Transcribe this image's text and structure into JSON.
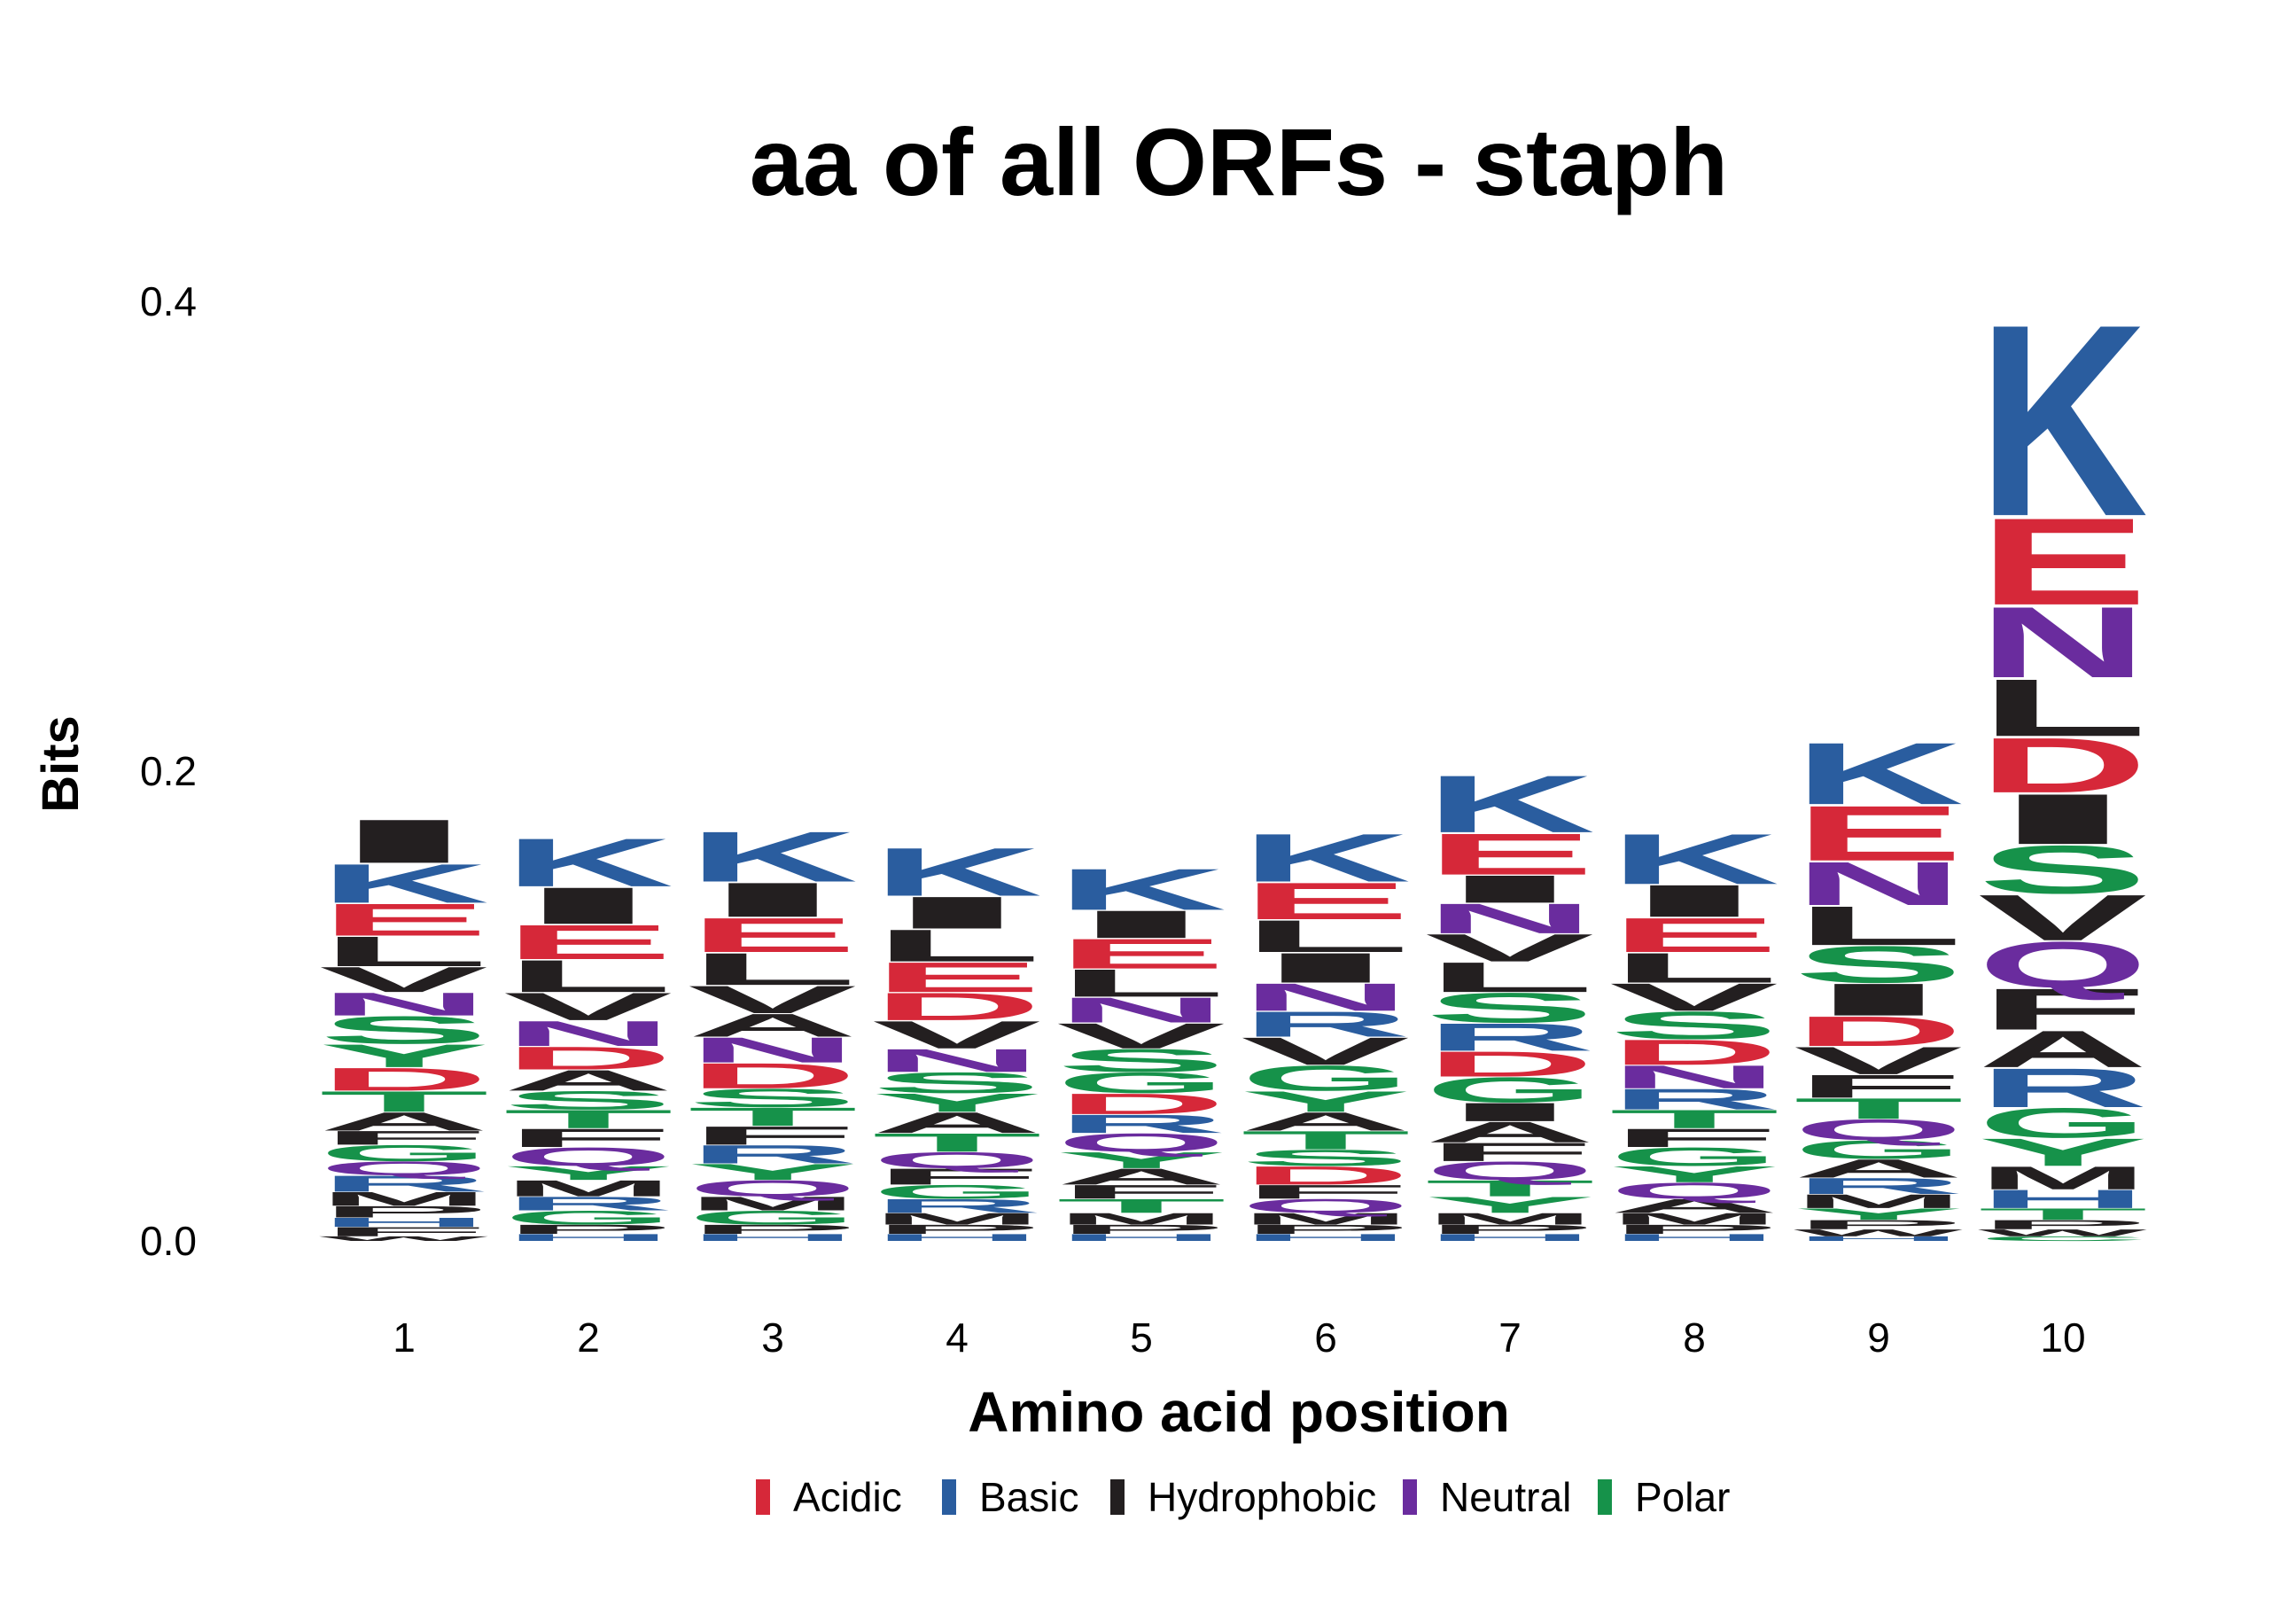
{
  "chart_data": {
    "type": "sequence-logo",
    "title": "aa of all ORFs - staph",
    "xlabel": "Amino acid position",
    "ylabel": "Bits",
    "ylim": [
      0,
      0.4
    ],
    "y_ticks": [
      "0.0",
      "0.2",
      "0.4"
    ],
    "x": [
      "1",
      "2",
      "3",
      "4",
      "5",
      "6",
      "7",
      "8",
      "9",
      "10"
    ],
    "grid": false,
    "legend_position": "bottom",
    "groups": [
      {
        "name": "Acidic",
        "color": "#d62839"
      },
      {
        "name": "Basic",
        "color": "#2a5d9f"
      },
      {
        "name": "Hydrophobic",
        "color": "#231f20"
      },
      {
        "name": "Neutral",
        "color": "#6a2c9e"
      },
      {
        "name": "Polar",
        "color": "#16924a"
      }
    ],
    "residue_group": {
      "D": "Acidic",
      "E": "Acidic",
      "K": "Basic",
      "R": "Basic",
      "H": "Basic",
      "A": "Hydrophobic",
      "V": "Hydrophobic",
      "L": "Hydrophobic",
      "I": "Hydrophobic",
      "M": "Hydrophobic",
      "F": "Hydrophobic",
      "W": "Hydrophobic",
      "P": "Hydrophobic",
      "N": "Neutral",
      "Q": "Neutral",
      "S": "Polar",
      "T": "Polar",
      "Y": "Polar",
      "G": "Polar",
      "C": "Polar"
    },
    "stacks": [
      [
        [
          "W",
          0.002
        ],
        [
          "F",
          0.004
        ],
        [
          "H",
          0.004
        ],
        [
          "P",
          0.005
        ],
        [
          "M",
          0.006
        ],
        [
          "R",
          0.007
        ],
        [
          "Q",
          0.006
        ],
        [
          "G",
          0.007
        ],
        [
          "F",
          0.006
        ],
        [
          "A",
          0.008
        ],
        [
          "T",
          0.009
        ],
        [
          "D",
          0.01
        ],
        [
          "Y",
          0.01
        ],
        [
          "S",
          0.012
        ],
        [
          "N",
          0.01
        ],
        [
          "V",
          0.011
        ],
        [
          "L",
          0.013
        ],
        [
          "E",
          0.014
        ],
        [
          "K",
          0.017
        ],
        [
          "I",
          0.019
        ]
      ],
      [
        [
          "H",
          0.003
        ],
        [
          "P",
          0.004
        ],
        [
          "G",
          0.006
        ],
        [
          "R",
          0.006
        ],
        [
          "M",
          0.007
        ],
        [
          "Y",
          0.006
        ],
        [
          "Q",
          0.008
        ],
        [
          "F",
          0.008
        ],
        [
          "T",
          0.008
        ],
        [
          "S",
          0.008
        ],
        [
          "A",
          0.009
        ],
        [
          "D",
          0.01
        ],
        [
          "N",
          0.011
        ],
        [
          "V",
          0.012
        ],
        [
          "L",
          0.014
        ],
        [
          "E",
          0.015
        ],
        [
          "I",
          0.016
        ],
        [
          "K",
          0.021
        ]
      ],
      [
        [
          "H",
          0.003
        ],
        [
          "P",
          0.004
        ],
        [
          "G",
          0.006
        ],
        [
          "M",
          0.006
        ],
        [
          "Q",
          0.007
        ],
        [
          "Y",
          0.007
        ],
        [
          "R",
          0.008
        ],
        [
          "F",
          0.008
        ],
        [
          "T",
          0.008
        ],
        [
          "S",
          0.008
        ],
        [
          "D",
          0.011
        ],
        [
          "N",
          0.011
        ],
        [
          "A",
          0.01
        ],
        [
          "V",
          0.012
        ],
        [
          "L",
          0.014
        ],
        [
          "E",
          0.015
        ],
        [
          "I",
          0.015
        ],
        [
          "K",
          0.022
        ]
      ],
      [
        [
          "H",
          0.003
        ],
        [
          "P",
          0.004
        ],
        [
          "M",
          0.005
        ],
        [
          "R",
          0.006
        ],
        [
          "G",
          0.006
        ],
        [
          "F",
          0.007
        ],
        [
          "Q",
          0.007
        ],
        [
          "T",
          0.008
        ],
        [
          "A",
          0.009
        ],
        [
          "Y",
          0.008
        ],
        [
          "S",
          0.009
        ],
        [
          "N",
          0.01
        ],
        [
          "V",
          0.012
        ],
        [
          "D",
          0.012
        ],
        [
          "E",
          0.013
        ],
        [
          "L",
          0.014
        ],
        [
          "I",
          0.014
        ],
        [
          "K",
          0.021
        ]
      ],
      [
        [
          "H",
          0.003
        ],
        [
          "P",
          0.004
        ],
        [
          "M",
          0.005
        ],
        [
          "T",
          0.006
        ],
        [
          "F",
          0.006
        ],
        [
          "A",
          0.007
        ],
        [
          "Y",
          0.007
        ],
        [
          "Q",
          0.008
        ],
        [
          "R",
          0.008
        ],
        [
          "D",
          0.009
        ],
        [
          "G",
          0.009
        ],
        [
          "S",
          0.01
        ],
        [
          "V",
          0.011
        ],
        [
          "N",
          0.011
        ],
        [
          "L",
          0.012
        ],
        [
          "E",
          0.013
        ],
        [
          "I",
          0.012
        ],
        [
          "K",
          0.018
        ]
      ],
      [
        [
          "H",
          0.003
        ],
        [
          "P",
          0.004
        ],
        [
          "M",
          0.005
        ],
        [
          "Q",
          0.006
        ],
        [
          "F",
          0.006
        ],
        [
          "D",
          0.008
        ],
        [
          "S",
          0.007
        ],
        [
          "T",
          0.008
        ],
        [
          "A",
          0.008
        ],
        [
          "Y",
          0.009
        ],
        [
          "G",
          0.011
        ],
        [
          "V",
          0.012
        ],
        [
          "R",
          0.011
        ],
        [
          "N",
          0.012
        ],
        [
          "I",
          0.013
        ],
        [
          "L",
          0.014
        ],
        [
          "E",
          0.016
        ],
        [
          "K",
          0.021
        ]
      ],
      [
        [
          "H",
          0.003
        ],
        [
          "P",
          0.004
        ],
        [
          "M",
          0.005
        ],
        [
          "Y",
          0.007
        ],
        [
          "T",
          0.007
        ],
        [
          "Q",
          0.008
        ],
        [
          "F",
          0.008
        ],
        [
          "A",
          0.009
        ],
        [
          "I",
          0.008
        ],
        [
          "G",
          0.011
        ],
        [
          "D",
          0.011
        ],
        [
          "R",
          0.012
        ],
        [
          "S",
          0.013
        ],
        [
          "L",
          0.013
        ],
        [
          "V",
          0.012
        ],
        [
          "N",
          0.013
        ],
        [
          "I",
          0.012
        ],
        [
          "E",
          0.018
        ],
        [
          "K",
          0.025
        ]
      ],
      [
        [
          "H",
          0.003
        ],
        [
          "P",
          0.004
        ],
        [
          "M",
          0.005
        ],
        [
          "A",
          0.006
        ],
        [
          "Q",
          0.007
        ],
        [
          "Y",
          0.007
        ],
        [
          "G",
          0.008
        ],
        [
          "F",
          0.008
        ],
        [
          "T",
          0.008
        ],
        [
          "R",
          0.009
        ],
        [
          "N",
          0.01
        ],
        [
          "D",
          0.011
        ],
        [
          "S",
          0.012
        ],
        [
          "V",
          0.012
        ],
        [
          "L",
          0.013
        ],
        [
          "E",
          0.015
        ],
        [
          "I",
          0.014
        ],
        [
          "K",
          0.022
        ]
      ],
      [
        [
          "H",
          0.002
        ],
        [
          "W",
          0.003
        ],
        [
          "P",
          0.004
        ],
        [
          "Y",
          0.005
        ],
        [
          "M",
          0.006
        ],
        [
          "R",
          0.007
        ],
        [
          "A",
          0.008
        ],
        [
          "G",
          0.008
        ],
        [
          "Q",
          0.009
        ],
        [
          "T",
          0.009
        ],
        [
          "F",
          0.01
        ],
        [
          "V",
          0.012
        ],
        [
          "D",
          0.013
        ],
        [
          "I",
          0.014
        ],
        [
          "S",
          0.016
        ],
        [
          "L",
          0.017
        ],
        [
          "N",
          0.019
        ],
        [
          "E",
          0.024
        ],
        [
          "K",
          0.027
        ]
      ],
      [
        [
          "C",
          0.002
        ],
        [
          "W",
          0.003
        ],
        [
          "P",
          0.004
        ],
        [
          "T",
          0.005
        ],
        [
          "H",
          0.008
        ],
        [
          "M",
          0.01
        ],
        [
          "Y",
          0.012
        ],
        [
          "G",
          0.013
        ],
        [
          "R",
          0.017
        ],
        [
          "A",
          0.016
        ],
        [
          "F",
          0.018
        ],
        [
          "Q",
          0.02
        ],
        [
          "V",
          0.02
        ],
        [
          "S",
          0.021
        ],
        [
          "I",
          0.022
        ],
        [
          "D",
          0.024
        ],
        [
          "L",
          0.025
        ],
        [
          "N",
          0.031
        ],
        [
          "E",
          0.038
        ],
        [
          "K",
          0.084
        ]
      ]
    ]
  }
}
